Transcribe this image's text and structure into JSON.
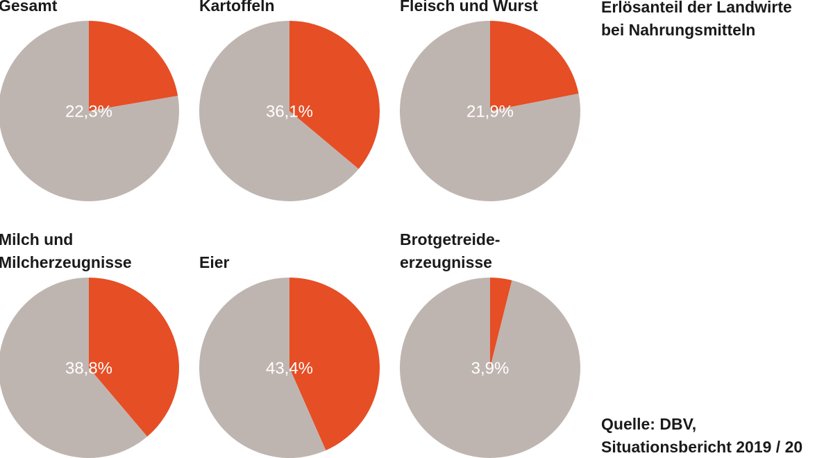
{
  "title": [
    "Erlösanteil der Landwirte",
    "bei Nahrungsmitteln"
  ],
  "source": [
    "Quelle: DBV,",
    "Situationsbericht 2019 / 20"
  ],
  "chart_data": [
    {
      "type": "pie",
      "title": [
        "Gesamt"
      ],
      "values": [
        22.3,
        77.7
      ],
      "value_labels": [
        "22,3%",
        null
      ],
      "colors": [
        "#e64e25",
        "#bfb5b0"
      ]
    },
    {
      "type": "pie",
      "title": [
        "Kartoffeln"
      ],
      "values": [
        36.1,
        63.9
      ],
      "value_labels": [
        "36,1%",
        null
      ],
      "colors": [
        "#e64e25",
        "#bfb5b0"
      ]
    },
    {
      "type": "pie",
      "title": [
        "Fleisch und Wurst"
      ],
      "values": [
        21.9,
        78.1
      ],
      "value_labels": [
        "21,9%",
        null
      ],
      "colors": [
        "#e64e25",
        "#bfb5b0"
      ]
    },
    {
      "type": "pie",
      "title": [
        "Milch und",
        "Milcherzeugnisse"
      ],
      "values": [
        38.8,
        61.2
      ],
      "value_labels": [
        "38,8%",
        null
      ],
      "colors": [
        "#e64e25",
        "#bfb5b0"
      ]
    },
    {
      "type": "pie",
      "title": [
        "Eier"
      ],
      "values": [
        43.4,
        56.6
      ],
      "value_labels": [
        "43,4%",
        null
      ],
      "colors": [
        "#e64e25",
        "#bfb5b0"
      ]
    },
    {
      "type": "pie",
      "title": [
        "Brotgetreide-",
        "erzeugnisse"
      ],
      "values": [
        3.9,
        96.1
      ],
      "value_labels": [
        "3,9%",
        null
      ],
      "colors": [
        "#e64e25",
        "#bfb5b0"
      ]
    }
  ]
}
